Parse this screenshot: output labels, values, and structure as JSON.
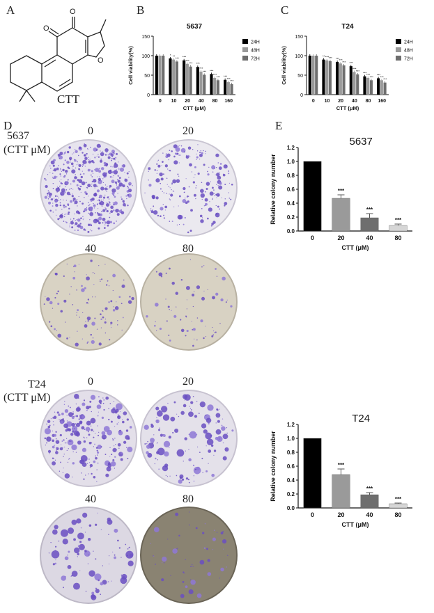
{
  "panels": {
    "A": "A",
    "B": "B",
    "C": "C",
    "D": "D",
    "E": "E"
  },
  "compound": {
    "name": "CTT",
    "atom_o1": "O",
    "atom_o2": "O",
    "atom_o3": "O"
  },
  "colony": {
    "top_cell": "5637",
    "top_unit": "(CTT μM)",
    "bottom_cell": "T24",
    "bottom_unit": "(CTT μM)",
    "doses": [
      "0",
      "20",
      "40",
      "80"
    ]
  },
  "colors": {
    "black": "#000000",
    "gray48": "#9a9a9a",
    "gray72": "#6e6e6e",
    "crystal_violet": "#6a4fc2",
    "plate_bg": "#e9e6ee",
    "plate_bg_dark": "#cfc8b8"
  },
  "chart_data": [
    {
      "panel": "B",
      "type": "bar",
      "title": "5637",
      "xlabel": "CTT (μM)",
      "ylabel": "Cell viability(%)",
      "ylim": [
        0,
        150
      ],
      "yticks": [
        "0",
        "50",
        "100",
        "150"
      ],
      "categories": [
        "0",
        "10",
        "20",
        "40",
        "80",
        "160"
      ],
      "series": [
        {
          "name": "24H",
          "color": "#000000",
          "values": [
            100,
            93,
            88,
            71,
            53,
            38
          ]
        },
        {
          "name": "48H",
          "color": "#9a9a9a",
          "values": [
            100,
            90,
            79,
            59,
            43,
            32
          ]
        },
        {
          "name": "72H",
          "color": "#6e6e6e",
          "values": [
            100,
            85,
            72,
            51,
            37,
            27
          ]
        }
      ],
      "significance": [
        [
          "",
          "",
          ""
        ],
        [
          "*",
          "**",
          "***"
        ],
        [
          "***",
          "***",
          "***"
        ],
        [
          "***",
          "***",
          "***"
        ],
        [
          "***",
          "***",
          "***"
        ],
        [
          "***",
          "***",
          "***"
        ]
      ],
      "legend_position": "right"
    },
    {
      "panel": "C",
      "type": "bar",
      "title": "T24",
      "xlabel": "CTT (μM)",
      "ylabel": "Cell viability(%)",
      "ylim": [
        0,
        150
      ],
      "yticks": [
        "0",
        "50",
        "100",
        "150"
      ],
      "categories": [
        "0",
        "10",
        "20",
        "40",
        "80",
        "160"
      ],
      "series": [
        {
          "name": "24H",
          "color": "#000000",
          "values": [
            100,
            90,
            84,
            73,
            47,
            42
          ]
        },
        {
          "name": "48H",
          "color": "#9a9a9a",
          "values": [
            100,
            88,
            80,
            58,
            43,
            37
          ]
        },
        {
          "name": "72H",
          "color": "#6e6e6e",
          "values": [
            100,
            86,
            75,
            52,
            37,
            31
          ]
        }
      ],
      "significance": [
        [
          "",
          "",
          ""
        ],
        [
          "**",
          "***",
          "***"
        ],
        [
          "***",
          "***",
          "***"
        ],
        [
          "***",
          "***",
          "***"
        ],
        [
          "***",
          "***",
          "***"
        ],
        [
          "***",
          "***",
          "***"
        ]
      ],
      "legend_position": "right"
    },
    {
      "panel": "E",
      "type": "bar",
      "title": "5637",
      "xlabel": "CTT (μM)",
      "ylabel": "Relative colony number",
      "ylim": [
        0,
        1.2
      ],
      "yticks": [
        "0.0",
        "0.2",
        "0.4",
        "0.6",
        "0.8",
        "1.0",
        "1.2"
      ],
      "categories": [
        "0",
        "20",
        "40",
        "80"
      ],
      "values": [
        1.0,
        0.47,
        0.19,
        0.08
      ],
      "errors": [
        0,
        0.05,
        0.06,
        0.02
      ],
      "colors": [
        "#000000",
        "#9a9a9a",
        "#6e6e6e",
        "#d6d6d6"
      ],
      "labels": [
        "",
        "***",
        "***",
        "***"
      ]
    },
    {
      "panel": "E",
      "type": "bar",
      "title": "T24",
      "xlabel": "CTT (μM)",
      "ylabel": "Relative colony number",
      "ylim": [
        0,
        1.2
      ],
      "yticks": [
        "0.0",
        "0.2",
        "0.4",
        "0.6",
        "0.8",
        "1.0",
        "1.2"
      ],
      "categories": [
        "0",
        "20",
        "40",
        "80"
      ],
      "values": [
        1.0,
        0.48,
        0.19,
        0.06
      ],
      "errors": [
        0,
        0.08,
        0.03,
        0.01
      ],
      "colors": [
        "#000000",
        "#9a9a9a",
        "#6e6e6e",
        "#d6d6d6"
      ],
      "labels": [
        "",
        "***",
        "***",
        "***"
      ]
    }
  ]
}
